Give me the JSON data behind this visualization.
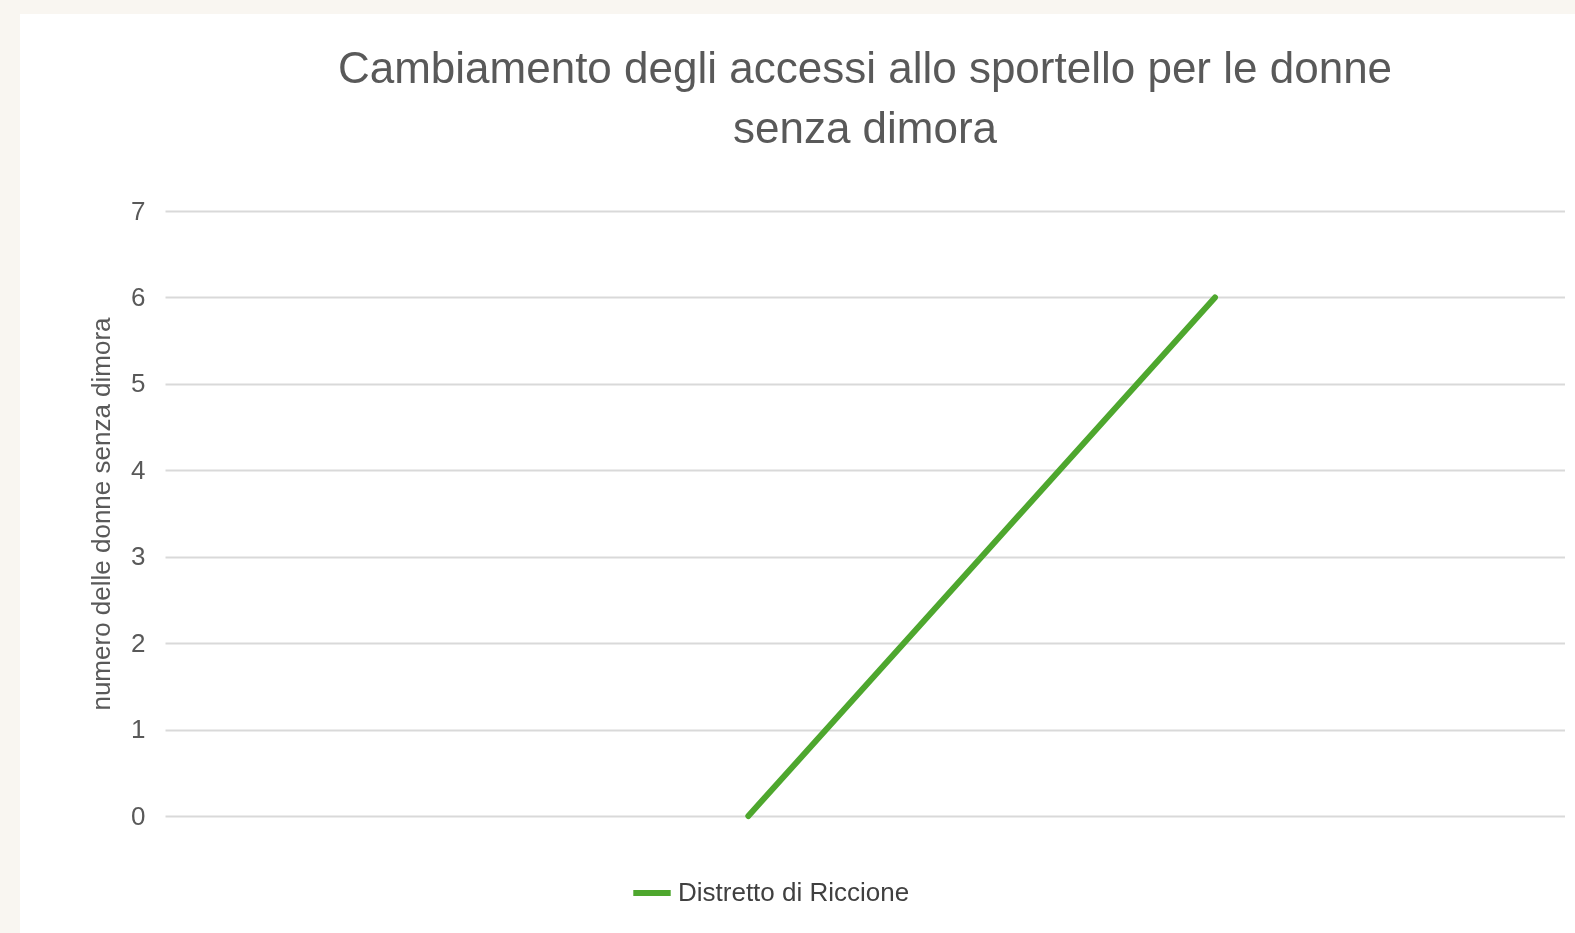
{
  "chart_data": {
    "type": "line",
    "title": "Cambiamento degli accessi allo sportello per le donne senza dimora",
    "ylabel": "numero delle donne senza dimora",
    "categories": [
      null,
      null,
      null,
      null,
      null,
      null
    ],
    "series": [
      {
        "name": "Distretto di Riccione",
        "color": "#4ea72e",
        "values": [
          null,
          null,
          0,
          3,
          6,
          null
        ]
      }
    ],
    "ylim": [
      0,
      7
    ],
    "yticks": [
      0,
      1,
      2,
      3,
      4,
      5,
      6,
      7
    ],
    "grid": "y",
    "legend": "bottom",
    "marker": "none",
    "line_style": "solid",
    "tick_labels": "y"
  }
}
